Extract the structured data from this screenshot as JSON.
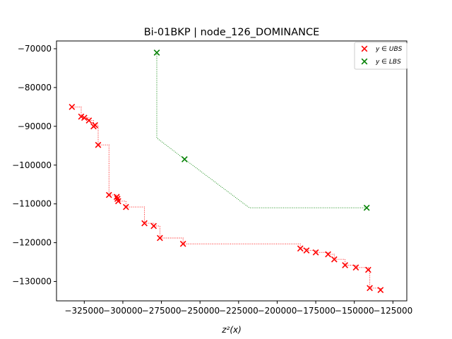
{
  "chart_data": {
    "type": "scatter",
    "title": "Bi-01BKP | node_126_DOMINANCE",
    "xlabel": "z²(x)",
    "ylabel": "",
    "xlim": [
      -343000,
      -116000
    ],
    "ylim": [
      -135000,
      -68000
    ],
    "x_ticks": [
      -325000,
      -300000,
      -275000,
      -250000,
      -225000,
      -200000,
      -175000,
      -150000,
      -125000
    ],
    "y_ticks": [
      -130000,
      -120000,
      -110000,
      -100000,
      -90000,
      -80000,
      -70000
    ],
    "x_tick_labels": [
      "−325000",
      "−300000",
      "−275000",
      "−250000",
      "−225000",
      "−200000",
      "−175000",
      "−150000",
      "−125000"
    ],
    "y_tick_labels": [
      "−130000",
      "−120000",
      "−110000",
      "−100000",
      "−90000",
      "−80000",
      "−70000"
    ],
    "legend_position": "top-right",
    "series": [
      {
        "name": "y ∈ UBS",
        "color": "#ff0000",
        "marker": "x",
        "step_line": "dotted",
        "points": [
          [
            -333000,
            -85000
          ],
          [
            -327000,
            -87500
          ],
          [
            -325000,
            -87800
          ],
          [
            -322000,
            -88500
          ],
          [
            -319000,
            -90000
          ],
          [
            -318000,
            -89700
          ],
          [
            -316000,
            -94800
          ],
          [
            -309000,
            -107700
          ],
          [
            -304000,
            -108200
          ],
          [
            -303500,
            -108700
          ],
          [
            -303000,
            -109300
          ],
          [
            -298000,
            -110800
          ],
          [
            -286000,
            -115000
          ],
          [
            -280000,
            -115700
          ],
          [
            -276000,
            -118800
          ],
          [
            -261000,
            -120300
          ],
          [
            -185000,
            -121500
          ],
          [
            -181000,
            -122000
          ],
          [
            -175000,
            -122500
          ],
          [
            -167000,
            -123000
          ],
          [
            -163000,
            -124300
          ],
          [
            -156000,
            -125800
          ],
          [
            -149000,
            -126400
          ],
          [
            -141000,
            -127000
          ],
          [
            -140000,
            -131700
          ],
          [
            -133000,
            -132200
          ]
        ]
      },
      {
        "name": "y ∈ LBS",
        "color": "#008000",
        "marker": "x",
        "points": [
          [
            -278000,
            -71000
          ],
          [
            -260000,
            -98500
          ],
          [
            -142000,
            -111000
          ]
        ],
        "dotted_path": [
          [
            -278000,
            -71000
          ],
          [
            -278000,
            -93000
          ],
          [
            -260000,
            -98500
          ],
          [
            -218000,
            -111000
          ],
          [
            -142000,
            -111000
          ]
        ]
      }
    ]
  }
}
